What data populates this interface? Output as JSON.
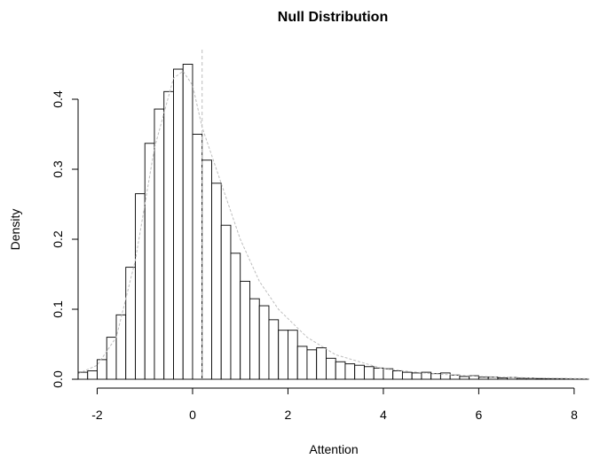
{
  "chart_data": {
    "type": "bar",
    "title": "Null Distribution",
    "xlabel": "Attention",
    "ylabel": "Density",
    "xlim": [
      -2.4,
      8.3
    ],
    "ylim": [
      0,
      0.45
    ],
    "x_ticks": [
      "-2",
      "0",
      "2",
      "4",
      "6",
      "8"
    ],
    "x_tick_values": [
      -2,
      0,
      2,
      4,
      6,
      8
    ],
    "y_ticks": [
      "0.0",
      "0.1",
      "0.2",
      "0.3",
      "0.4"
    ],
    "y_tick_values": [
      0,
      0.1,
      0.2,
      0.3,
      0.4
    ],
    "bin_width": 0.2,
    "bin_start": -2.4,
    "values": [
      0.01,
      0.012,
      0.028,
      0.06,
      0.092,
      0.16,
      0.265,
      0.337,
      0.386,
      0.411,
      0.443,
      0.45,
      0.35,
      0.313,
      0.28,
      0.22,
      0.18,
      0.14,
      0.115,
      0.105,
      0.085,
      0.07,
      0.07,
      0.047,
      0.042,
      0.045,
      0.03,
      0.025,
      0.022,
      0.02,
      0.018,
      0.016,
      0.015,
      0.012,
      0.01,
      0.009,
      0.01,
      0.008,
      0.009,
      0.006,
      0.004,
      0.005,
      0.003,
      0.003,
      0.002,
      0.0025,
      0.0015,
      0.0015,
      0.001,
      0.0008,
      0.0008,
      0.0005,
      0.0004,
      0.0003
    ],
    "density_curve": {
      "x": [
        -2.4,
        -2.0,
        -1.6,
        -1.2,
        -0.8,
        -0.4,
        -0.2,
        0.0,
        0.2,
        0.6,
        1.0,
        1.4,
        1.8,
        2.4,
        3.0,
        4.0,
        5.0,
        6.0,
        7.0,
        8.0,
        8.3
      ],
      "y": [
        0.008,
        0.02,
        0.06,
        0.17,
        0.33,
        0.43,
        0.44,
        0.42,
        0.36,
        0.28,
        0.2,
        0.14,
        0.1,
        0.06,
        0.035,
        0.015,
        0.008,
        0.004,
        0.002,
        0.001,
        0.0008
      ]
    },
    "observed_line_x": 0.2,
    "legend": "none",
    "grid": false
  }
}
